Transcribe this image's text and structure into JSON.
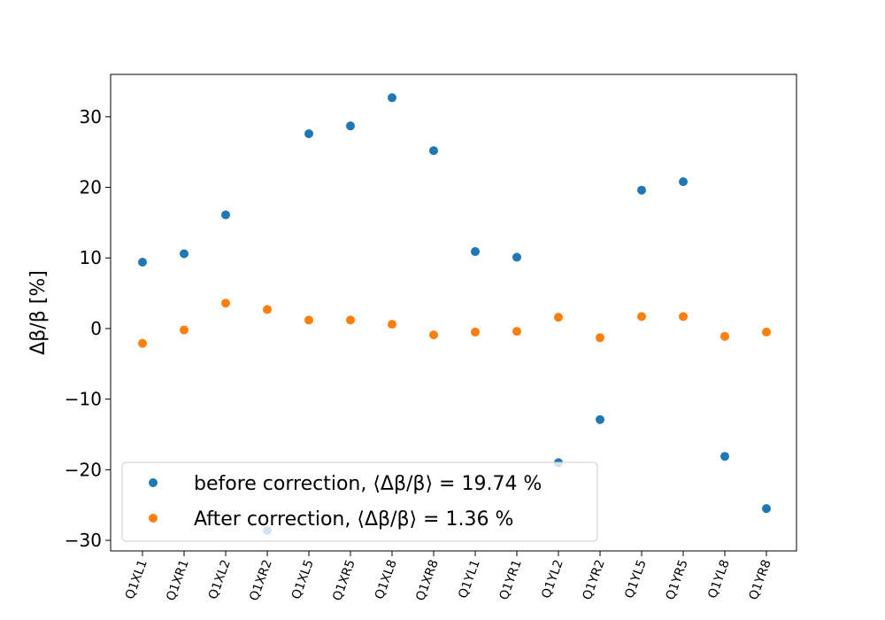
{
  "chart_data": {
    "type": "scatter",
    "ylabel": "Δβ/β [%]",
    "categories": [
      "Q1XL1",
      "Q1XR1",
      "Q1XL2",
      "Q1XR2",
      "Q1XL5",
      "Q1XR5",
      "Q1XL8",
      "Q1XR8",
      "Q1YL1",
      "Q1YR1",
      "Q1YL2",
      "Q1YR2",
      "Q1YL5",
      "Q1YR5",
      "Q1YL8",
      "Q1YR8"
    ],
    "ylim": [
      -31.5,
      36
    ],
    "yticks": [
      -30,
      -20,
      -10,
      0,
      10,
      20,
      30
    ],
    "ytick_labels": [
      "−30",
      "−20",
      "−10",
      "0",
      "10",
      "20",
      "30"
    ],
    "grid": false,
    "legend_position": "lower-left",
    "series": [
      {
        "name": "before correction, ⟨Δβ/β⟩ = 19.74 %",
        "color": "#1f77b4",
        "values": [
          9.4,
          10.6,
          16.1,
          -28.6,
          27.6,
          28.7,
          32.7,
          25.2,
          10.9,
          10.1,
          -19.0,
          -12.9,
          19.6,
          20.8,
          -18.1,
          -25.5
        ]
      },
      {
        "name": "After correction, ⟨Δβ/β⟩ = 1.36 %",
        "color": "#ff7f0e",
        "values": [
          -2.1,
          -0.2,
          3.6,
          2.7,
          1.2,
          1.2,
          0.6,
          -0.9,
          -0.5,
          -0.4,
          1.6,
          -1.3,
          1.7,
          1.7,
          -1.1,
          -0.5
        ]
      }
    ]
  }
}
